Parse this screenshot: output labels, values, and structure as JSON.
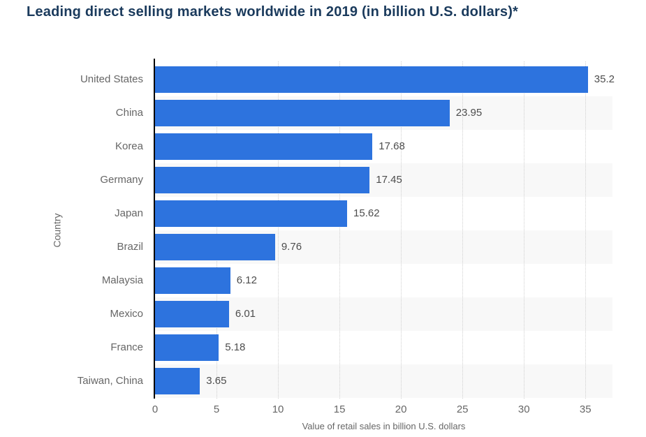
{
  "title": "Leading direct selling markets worldwide in 2019 (in billion U.S. dollars)*",
  "chart_data": {
    "type": "bar",
    "orientation": "horizontal",
    "title": "Leading direct selling markets worldwide in 2019 (in billion U.S. dollars)*",
    "categories": [
      "United States",
      "China",
      "Korea",
      "Germany",
      "Japan",
      "Brazil",
      "Malaysia",
      "Mexico",
      "France",
      "Taiwan, China"
    ],
    "values": [
      35.2,
      23.95,
      17.68,
      17.45,
      15.62,
      9.76,
      6.12,
      6.01,
      5.18,
      3.65
    ],
    "value_labels": [
      "35.2",
      "23.95",
      "17.68",
      "17.45",
      "15.62",
      "9.76",
      "6.12",
      "6.01",
      "5.18",
      "3.65"
    ],
    "xlabel": "Value of retail sales in billion U.S. dollars",
    "ylabel": "Country",
    "xlim": [
      0,
      37.2
    ],
    "xticks": [
      0,
      5,
      10,
      15,
      20,
      25,
      30,
      35
    ],
    "grid": "vertical-dotted",
    "legend": "none",
    "colors": {
      "bar": "#2d73de",
      "row_band": "#f8f8f8",
      "title_text": "#1a3a5c",
      "axis_line": "#000000",
      "category_text": "#666666",
      "value_text": "#4d4d4d",
      "gridline": "#cfcfcf"
    }
  }
}
